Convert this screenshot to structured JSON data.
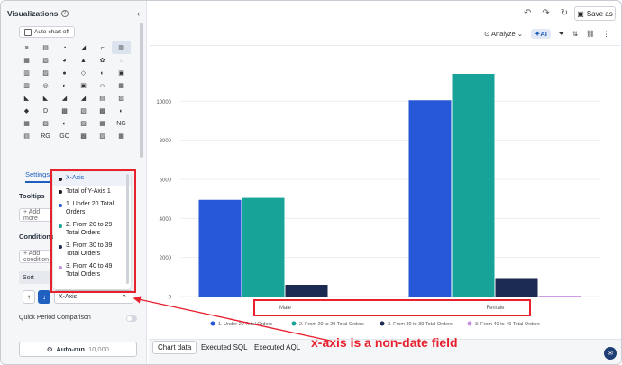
{
  "left_panel": {
    "title": "Visualizations",
    "auto_chart": "Auto-chart off",
    "chart_icons": [
      "≡",
      "▤",
      "◔",
      "◢",
      "⌐",
      "▥",
      "▦",
      "▧",
      "◕",
      "▲",
      "✿",
      "◌",
      "▥",
      "▨",
      "●",
      "◇",
      "◐",
      "▣",
      "▥",
      "◎",
      "◐",
      "▣",
      "☺",
      "▦",
      "◣",
      "◣",
      "◢",
      "◢",
      "▤",
      "▨",
      "◆",
      "D",
      "▩",
      "▧",
      "▩",
      "◐",
      "▦",
      "▨",
      "◐",
      "▨",
      "▦",
      "NG",
      "▤",
      "RG",
      "GC",
      "▩",
      "▨",
      "▦"
    ],
    "tabs": [
      "Settings"
    ],
    "tooltips_label": "Tooltips",
    "add_more": "+ Add more",
    "conditions_label": "Conditions",
    "add_condition": "+ Add condition",
    "sort_label": "Sort",
    "sort_field": "X-Axis",
    "quick_period": "Quick Period Comparison",
    "autorun": "Auto-run",
    "autorun_count": "10,000"
  },
  "dropdown": {
    "items": [
      {
        "label": "X-Axis",
        "color": "#1a1a1a"
      },
      {
        "label": "Total of Y-Axis 1",
        "color": "#1a1a1a"
      },
      {
        "label": "1. Under 20 Total Orders",
        "color": "#2557d6"
      },
      {
        "label": "2. From 20 to 29 Total Orders",
        "color": "#17a398"
      },
      {
        "label": "3. From 30 to 39 Total Orders",
        "color": "#1b2a50"
      },
      {
        "label": "3. From 40 to 49 Total Orders",
        "color": "#c58ee0"
      }
    ]
  },
  "header": {
    "save_as": "Save as",
    "analyze": "Analyze",
    "ai": "AI"
  },
  "bottom_tabs": [
    "Chart data",
    "Executed SQL",
    "Executed AQL"
  ],
  "annotation": "x-axis is a non-date field",
  "colors": {
    "s1": "#2557d6",
    "s2": "#17a398",
    "s3": "#1b2a50",
    "s4": "#c58ee0",
    "accent": "#1f5fbf",
    "red": "#e8212e"
  },
  "chart_data": {
    "type": "bar",
    "categories": [
      "Male",
      "Female"
    ],
    "series": [
      {
        "name": "1. Under 20 Total Orders",
        "values": [
          4950,
          10050
        ]
      },
      {
        "name": "2. From 20 to 29 Total Orders",
        "values": [
          5050,
          11400
        ]
      },
      {
        "name": "3. From 30 to 39 Total Orders",
        "values": [
          600,
          900
        ]
      },
      {
        "name": "3. From 40 to 49 Total Orders",
        "values": [
          0,
          40
        ]
      }
    ],
    "legend_labels": [
      "1. Under 20 Total Orders",
      "2. From 20 to 29 Total Orders",
      "3. From 30 to 39 Total Orders",
      "3. From 40 to 49 Total Orders"
    ],
    "yticks": [
      0,
      2000,
      4000,
      6000,
      8000,
      10000
    ],
    "ylim": [
      0,
      12000
    ],
    "grid": true,
    "legend_position": "bottom"
  }
}
